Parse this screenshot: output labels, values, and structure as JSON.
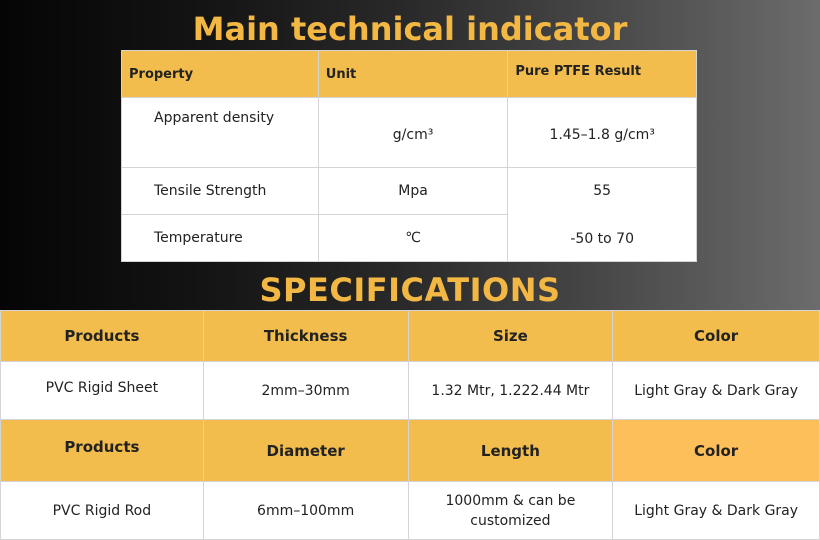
{
  "technical": {
    "title": "Main technical indicator",
    "headers": [
      "Property",
      "Unit",
      "Pure PTFE Result"
    ],
    "rows": [
      {
        "property": "Apparent density",
        "unit": "g/cm³",
        "result": "1.45–1.8 g/cm³"
      },
      {
        "property": "Tensile Strength",
        "unit": "Mpa",
        "result": "55"
      },
      {
        "property": "Temperature",
        "unit": "℃",
        "result": "-50 to 70"
      }
    ]
  },
  "specifications": {
    "title": "SPECIFICATIONS",
    "sheet_headers": [
      "Products",
      "Thickness",
      "Size",
      "Color"
    ],
    "sheet_row": [
      "PVC Rigid Sheet",
      "2mm–30mm",
      "1.32 Mtr, 1.222.44 Mtr",
      "Light Gray & Dark Gray"
    ],
    "rod_headers": [
      "Products",
      "Diameter",
      "Length",
      "Color"
    ],
    "rod_row": [
      "PVC Rigid Rod",
      "6mm–100mm",
      "1000mm & can be customized",
      "Light Gray & Dark Gray"
    ]
  },
  "colors": {
    "accent": "#f2b843",
    "header_fill": "#f2bd4c",
    "cell_fill": "#ffffff"
  }
}
